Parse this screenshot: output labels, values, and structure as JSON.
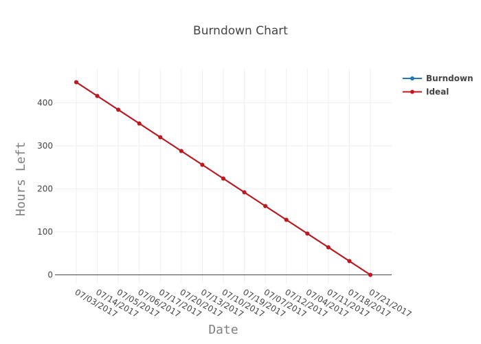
{
  "chart_data": {
    "type": "line",
    "title": "Burndown Chart",
    "xlabel": "Date",
    "ylabel": "Hours Left",
    "categories": [
      "07/03/2017",
      "07/14/2017",
      "07/05/2017",
      "07/06/2017",
      "07/17/2017",
      "07/20/2017",
      "07/13/2017",
      "07/10/2017",
      "07/19/2017",
      "07/07/2017",
      "07/12/2017",
      "07/04/2017",
      "07/11/2017",
      "07/18/2017",
      "07/21/2017"
    ],
    "yticks": [
      "0",
      "100",
      "200",
      "300",
      "400"
    ],
    "ylim": [
      -18,
      470
    ],
    "grid": true,
    "legend_position": "top-right",
    "series": [
      {
        "name": "Burndown",
        "color": "#1f77b4",
        "values": [
          448,
          416,
          384,
          352,
          320,
          288,
          256,
          224,
          192,
          160,
          128,
          96,
          64,
          32,
          0
        ]
      },
      {
        "name": "Ideal",
        "color": "#c0181c",
        "values": [
          448,
          416,
          384,
          352,
          320,
          288,
          256,
          224,
          192,
          160,
          128,
          96,
          64,
          32,
          0
        ]
      }
    ]
  }
}
